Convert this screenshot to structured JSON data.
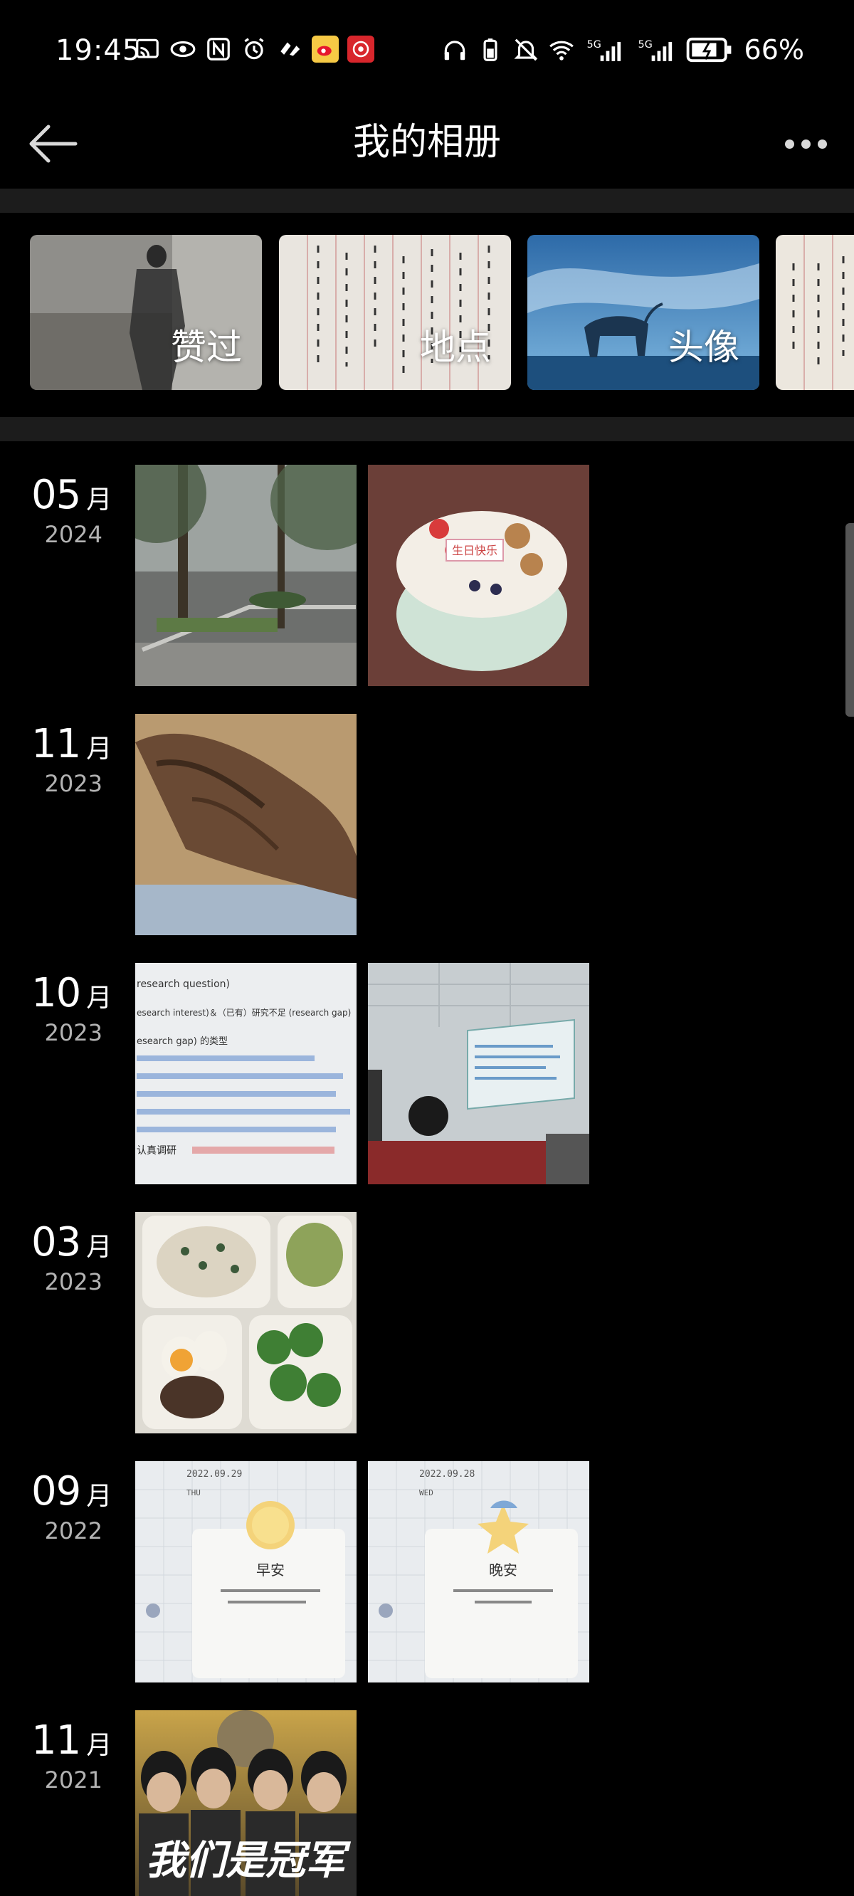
{
  "status_bar": {
    "time": "19:45",
    "battery": "66%",
    "network_labels": [
      "5G",
      "5G"
    ]
  },
  "header": {
    "title": "我的相册",
    "back_icon": "arrow-left-icon",
    "more_icon": "more-horizontal-icon"
  },
  "categories": [
    {
      "label": "赞过"
    },
    {
      "label": "地点"
    },
    {
      "label": "头像"
    },
    {
      "label": ""
    }
  ],
  "timeline": [
    {
      "month": "05",
      "unit": "月",
      "year": "2024",
      "photos": 2
    },
    {
      "month": "11",
      "unit": "月",
      "year": "2023",
      "photos": 1
    },
    {
      "month": "10",
      "unit": "月",
      "year": "2023",
      "photos": 2
    },
    {
      "month": "03",
      "unit": "月",
      "year": "2023",
      "photos": 1
    },
    {
      "month": "09",
      "unit": "月",
      "year": "2022",
      "photos": 2
    },
    {
      "month": "11",
      "unit": "月",
      "year": "2021",
      "photos": 1
    }
  ],
  "photo_text": {
    "slide_title": "research question)",
    "slide_line1": "esearch interest)＆（已有）研究不足 (research gap)",
    "slide_line2": "esearch gap) 的类型",
    "slide_line3": "认真调研",
    "card_date_1": "2022.09.29",
    "card_day_1": "THU",
    "card_title_1": "早安",
    "card_date_2": "2022.09.28",
    "card_day_2": "WED",
    "card_title_2": "晚安",
    "poster_text": "我们是冠军",
    "cake_text": "生日快乐"
  }
}
